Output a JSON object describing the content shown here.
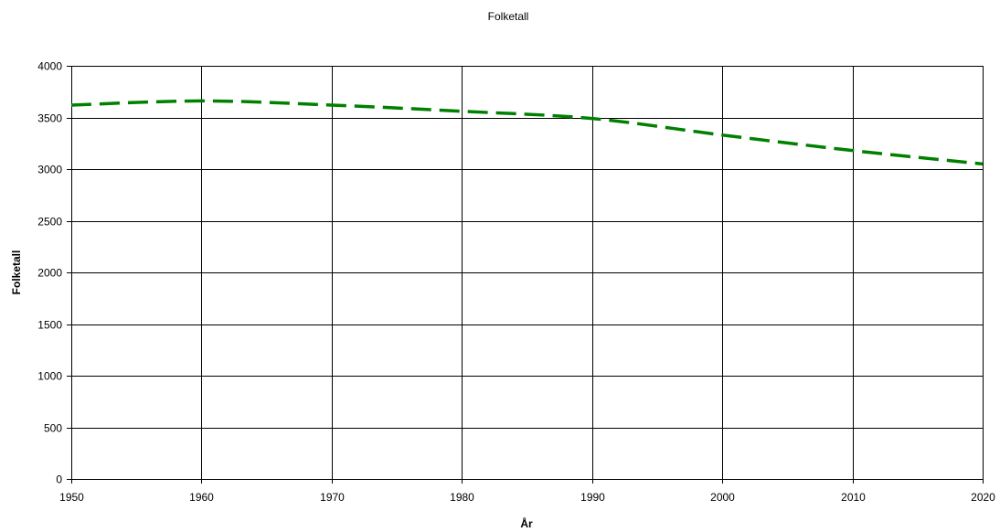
{
  "chart_data": {
    "type": "line",
    "title": "Folketall",
    "xlabel": "År",
    "ylabel": "Folketall",
    "xlim": [
      1950,
      2020
    ],
    "ylim": [
      0,
      4000
    ],
    "x_ticks": [
      1950,
      1960,
      1970,
      1980,
      1990,
      2000,
      2010,
      2020
    ],
    "y_ticks": [
      0,
      500,
      1000,
      1500,
      2000,
      2500,
      3000,
      3500,
      4000
    ],
    "grid": true,
    "legend": "none",
    "series": [
      {
        "color": "#008000",
        "line_style": "dashed",
        "points": [
          {
            "x": 1950,
            "y": 3620
          },
          {
            "x": 1960,
            "y": 3660
          },
          {
            "x": 1970,
            "y": 3620
          },
          {
            "x": 1980,
            "y": 3560
          },
          {
            "x": 1990,
            "y": 3490
          },
          {
            "x": 2000,
            "y": 3330
          },
          {
            "x": 2010,
            "y": 3180
          },
          {
            "x": 2020,
            "y": 3050
          }
        ]
      }
    ]
  }
}
